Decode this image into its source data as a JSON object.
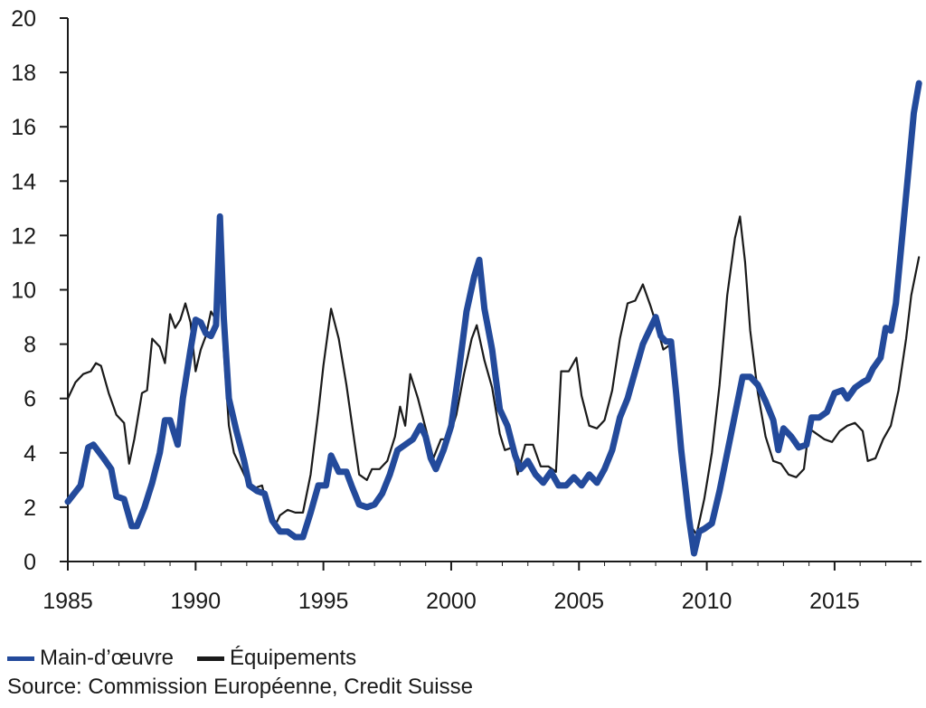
{
  "chart_data": {
    "type": "line",
    "xlim": [
      1985,
      2018.4
    ],
    "ylim": [
      0,
      20
    ],
    "x_ticks": [
      1985,
      1990,
      1995,
      2000,
      2005,
      2010,
      2015
    ],
    "y_ticks": [
      0,
      2,
      4,
      6,
      8,
      10,
      12,
      14,
      16,
      18,
      20
    ],
    "legend_position": "bottom-left",
    "series": [
      {
        "name": "Main-d’œuvre",
        "color": "#234a9b",
        "points": [
          [
            1985.0,
            2.2
          ],
          [
            1985.5,
            2.8
          ],
          [
            1985.8,
            4.2
          ],
          [
            1986.0,
            4.3
          ],
          [
            1986.4,
            3.8
          ],
          [
            1986.7,
            3.4
          ],
          [
            1986.9,
            2.4
          ],
          [
            1987.2,
            2.3
          ],
          [
            1987.5,
            1.3
          ],
          [
            1987.7,
            1.3
          ],
          [
            1988.0,
            2.0
          ],
          [
            1988.3,
            2.9
          ],
          [
            1988.6,
            4.0
          ],
          [
            1988.8,
            5.2
          ],
          [
            1989.0,
            5.2
          ],
          [
            1989.3,
            4.3
          ],
          [
            1989.5,
            6.0
          ],
          [
            1989.8,
            7.8
          ],
          [
            1990.0,
            8.9
          ],
          [
            1990.2,
            8.8
          ],
          [
            1990.4,
            8.4
          ],
          [
            1990.6,
            8.3
          ],
          [
            1990.8,
            8.7
          ],
          [
            1990.95,
            12.7
          ],
          [
            1991.1,
            9.0
          ],
          [
            1991.3,
            6.0
          ],
          [
            1991.6,
            4.8
          ],
          [
            1991.9,
            3.7
          ],
          [
            1992.1,
            2.8
          ],
          [
            1992.4,
            2.6
          ],
          [
            1992.7,
            2.5
          ],
          [
            1993.0,
            1.5
          ],
          [
            1993.3,
            1.1
          ],
          [
            1993.6,
            1.1
          ],
          [
            1993.9,
            0.9
          ],
          [
            1994.2,
            0.9
          ],
          [
            1994.5,
            1.8
          ],
          [
            1994.8,
            2.8
          ],
          [
            1995.1,
            2.8
          ],
          [
            1995.3,
            3.9
          ],
          [
            1995.6,
            3.3
          ],
          [
            1995.9,
            3.3
          ],
          [
            1996.1,
            2.8
          ],
          [
            1996.4,
            2.1
          ],
          [
            1996.7,
            2.0
          ],
          [
            1997.0,
            2.1
          ],
          [
            1997.3,
            2.5
          ],
          [
            1997.6,
            3.2
          ],
          [
            1997.9,
            4.1
          ],
          [
            1998.2,
            4.3
          ],
          [
            1998.5,
            4.5
          ],
          [
            1998.8,
            5.0
          ],
          [
            1999.0,
            4.6
          ],
          [
            1999.2,
            3.8
          ],
          [
            1999.4,
            3.4
          ],
          [
            1999.7,
            4.1
          ],
          [
            2000.0,
            5.0
          ],
          [
            2000.3,
            7.0
          ],
          [
            2000.6,
            9.2
          ],
          [
            2000.9,
            10.5
          ],
          [
            2001.1,
            11.1
          ],
          [
            2001.3,
            9.3
          ],
          [
            2001.6,
            7.8
          ],
          [
            2001.9,
            5.6
          ],
          [
            2002.2,
            5.0
          ],
          [
            2002.5,
            3.9
          ],
          [
            2002.7,
            3.4
          ],
          [
            2003.0,
            3.7
          ],
          [
            2003.3,
            3.2
          ],
          [
            2003.6,
            2.9
          ],
          [
            2003.9,
            3.3
          ],
          [
            2004.2,
            2.8
          ],
          [
            2004.5,
            2.8
          ],
          [
            2004.8,
            3.1
          ],
          [
            2005.1,
            2.8
          ],
          [
            2005.4,
            3.2
          ],
          [
            2005.7,
            2.9
          ],
          [
            2006.0,
            3.4
          ],
          [
            2006.3,
            4.1
          ],
          [
            2006.6,
            5.3
          ],
          [
            2006.9,
            6.0
          ],
          [
            2007.2,
            7.0
          ],
          [
            2007.5,
            8.0
          ],
          [
            2007.8,
            8.6
          ],
          [
            2008.0,
            9.0
          ],
          [
            2008.2,
            8.3
          ],
          [
            2008.4,
            8.1
          ],
          [
            2008.6,
            8.1
          ],
          [
            2008.8,
            6.2
          ],
          [
            2009.0,
            4.1
          ],
          [
            2009.3,
            1.6
          ],
          [
            2009.5,
            0.3
          ],
          [
            2009.7,
            1.1
          ],
          [
            2009.9,
            1.2
          ],
          [
            2010.2,
            1.4
          ],
          [
            2010.5,
            2.6
          ],
          [
            2010.8,
            4.0
          ],
          [
            2011.1,
            5.4
          ],
          [
            2011.4,
            6.8
          ],
          [
            2011.7,
            6.8
          ],
          [
            2012.0,
            6.5
          ],
          [
            2012.3,
            5.9
          ],
          [
            2012.6,
            5.2
          ],
          [
            2012.8,
            4.1
          ],
          [
            2013.0,
            4.9
          ],
          [
            2013.3,
            4.6
          ],
          [
            2013.6,
            4.2
          ],
          [
            2013.9,
            4.3
          ],
          [
            2014.1,
            5.3
          ],
          [
            2014.4,
            5.3
          ],
          [
            2014.7,
            5.5
          ],
          [
            2015.0,
            6.2
          ],
          [
            2015.3,
            6.3
          ],
          [
            2015.5,
            6.0
          ],
          [
            2015.8,
            6.4
          ],
          [
            2016.1,
            6.6
          ],
          [
            2016.3,
            6.7
          ],
          [
            2016.5,
            7.1
          ],
          [
            2016.8,
            7.5
          ],
          [
            2017.0,
            8.6
          ],
          [
            2017.2,
            8.5
          ],
          [
            2017.4,
            9.5
          ],
          [
            2017.6,
            11.5
          ],
          [
            2017.9,
            14.5
          ],
          [
            2018.1,
            16.5
          ],
          [
            2018.3,
            17.6
          ]
        ]
      },
      {
        "name": "Équipements",
        "color": "#1a1a1a",
        "points": [
          [
            1985.0,
            6.0
          ],
          [
            1985.3,
            6.6
          ],
          [
            1985.6,
            6.9
          ],
          [
            1985.9,
            7.0
          ],
          [
            1986.1,
            7.3
          ],
          [
            1986.3,
            7.2
          ],
          [
            1986.6,
            6.2
          ],
          [
            1986.9,
            5.4
          ],
          [
            1987.2,
            5.1
          ],
          [
            1987.4,
            3.6
          ],
          [
            1987.6,
            4.5
          ],
          [
            1987.9,
            6.2
          ],
          [
            1988.1,
            6.3
          ],
          [
            1988.3,
            8.2
          ],
          [
            1988.6,
            7.9
          ],
          [
            1988.8,
            7.3
          ],
          [
            1989.0,
            9.1
          ],
          [
            1989.2,
            8.6
          ],
          [
            1989.4,
            8.9
          ],
          [
            1989.6,
            9.5
          ],
          [
            1989.8,
            8.8
          ],
          [
            1990.0,
            7.0
          ],
          [
            1990.2,
            7.8
          ],
          [
            1990.4,
            8.3
          ],
          [
            1990.6,
            9.2
          ],
          [
            1990.8,
            8.9
          ],
          [
            1990.95,
            11.8
          ],
          [
            1991.1,
            7.8
          ],
          [
            1991.3,
            5.0
          ],
          [
            1991.5,
            4.0
          ],
          [
            1991.8,
            3.4
          ],
          [
            1992.0,
            3.0
          ],
          [
            1992.3,
            2.7
          ],
          [
            1992.6,
            2.8
          ],
          [
            1992.9,
            1.6
          ],
          [
            1993.1,
            1.3
          ],
          [
            1993.3,
            1.7
          ],
          [
            1993.6,
            1.9
          ],
          [
            1993.9,
            1.8
          ],
          [
            1994.2,
            1.8
          ],
          [
            1994.5,
            3.2
          ],
          [
            1994.8,
            5.5
          ],
          [
            1995.0,
            7.2
          ],
          [
            1995.3,
            9.3
          ],
          [
            1995.6,
            8.2
          ],
          [
            1995.9,
            6.5
          ],
          [
            1996.2,
            4.5
          ],
          [
            1996.4,
            3.2
          ],
          [
            1996.7,
            3.0
          ],
          [
            1996.9,
            3.4
          ],
          [
            1997.2,
            3.4
          ],
          [
            1997.5,
            3.7
          ],
          [
            1997.8,
            4.6
          ],
          [
            1998.0,
            5.7
          ],
          [
            1998.2,
            5.0
          ],
          [
            1998.4,
            6.9
          ],
          [
            1998.7,
            6.0
          ],
          [
            1999.0,
            4.9
          ],
          [
            1999.3,
            3.8
          ],
          [
            1999.6,
            4.5
          ],
          [
            1999.9,
            4.5
          ],
          [
            2000.2,
            5.4
          ],
          [
            2000.5,
            6.9
          ],
          [
            2000.8,
            8.2
          ],
          [
            2001.0,
            8.7
          ],
          [
            2001.3,
            7.4
          ],
          [
            2001.6,
            6.4
          ],
          [
            2001.9,
            4.7
          ],
          [
            2002.1,
            4.1
          ],
          [
            2002.4,
            4.2
          ],
          [
            2002.6,
            3.2
          ],
          [
            2002.9,
            4.3
          ],
          [
            2003.2,
            4.3
          ],
          [
            2003.5,
            3.5
          ],
          [
            2003.8,
            3.5
          ],
          [
            2004.1,
            3.3
          ],
          [
            2004.3,
            7.0
          ],
          [
            2004.6,
            7.0
          ],
          [
            2004.9,
            7.5
          ],
          [
            2005.1,
            6.1
          ],
          [
            2005.4,
            5.0
          ],
          [
            2005.7,
            4.9
          ],
          [
            2006.0,
            5.2
          ],
          [
            2006.3,
            6.3
          ],
          [
            2006.6,
            8.2
          ],
          [
            2006.9,
            9.5
          ],
          [
            2007.2,
            9.6
          ],
          [
            2007.5,
            10.2
          ],
          [
            2007.8,
            9.4
          ],
          [
            2008.0,
            8.8
          ],
          [
            2008.3,
            7.8
          ],
          [
            2008.6,
            8.0
          ],
          [
            2008.8,
            5.9
          ],
          [
            2009.0,
            3.8
          ],
          [
            2009.3,
            1.4
          ],
          [
            2009.6,
            1.0
          ],
          [
            2009.9,
            2.3
          ],
          [
            2010.2,
            4.0
          ],
          [
            2010.5,
            6.5
          ],
          [
            2010.8,
            9.8
          ],
          [
            2011.1,
            11.9
          ],
          [
            2011.3,
            12.7
          ],
          [
            2011.5,
            11.0
          ],
          [
            2011.7,
            8.5
          ],
          [
            2012.0,
            6.2
          ],
          [
            2012.3,
            4.6
          ],
          [
            2012.6,
            3.7
          ],
          [
            2012.9,
            3.6
          ],
          [
            2013.2,
            3.2
          ],
          [
            2013.5,
            3.1
          ],
          [
            2013.8,
            3.4
          ],
          [
            2014.0,
            4.9
          ],
          [
            2014.3,
            4.7
          ],
          [
            2014.6,
            4.5
          ],
          [
            2014.9,
            4.4
          ],
          [
            2015.2,
            4.8
          ],
          [
            2015.5,
            5.0
          ],
          [
            2015.8,
            5.1
          ],
          [
            2016.1,
            4.8
          ],
          [
            2016.3,
            3.7
          ],
          [
            2016.6,
            3.8
          ],
          [
            2016.9,
            4.5
          ],
          [
            2017.2,
            5.0
          ],
          [
            2017.5,
            6.3
          ],
          [
            2017.8,
            8.2
          ],
          [
            2018.0,
            9.8
          ],
          [
            2018.3,
            11.2
          ]
        ]
      }
    ]
  },
  "legend": [
    {
      "label": "Main-d’œuvre",
      "color": "#234a9b"
    },
    {
      "label": "Équipements",
      "color": "#1a1a1a"
    }
  ],
  "source": "Source: Commission Européenne, Credit Suisse"
}
